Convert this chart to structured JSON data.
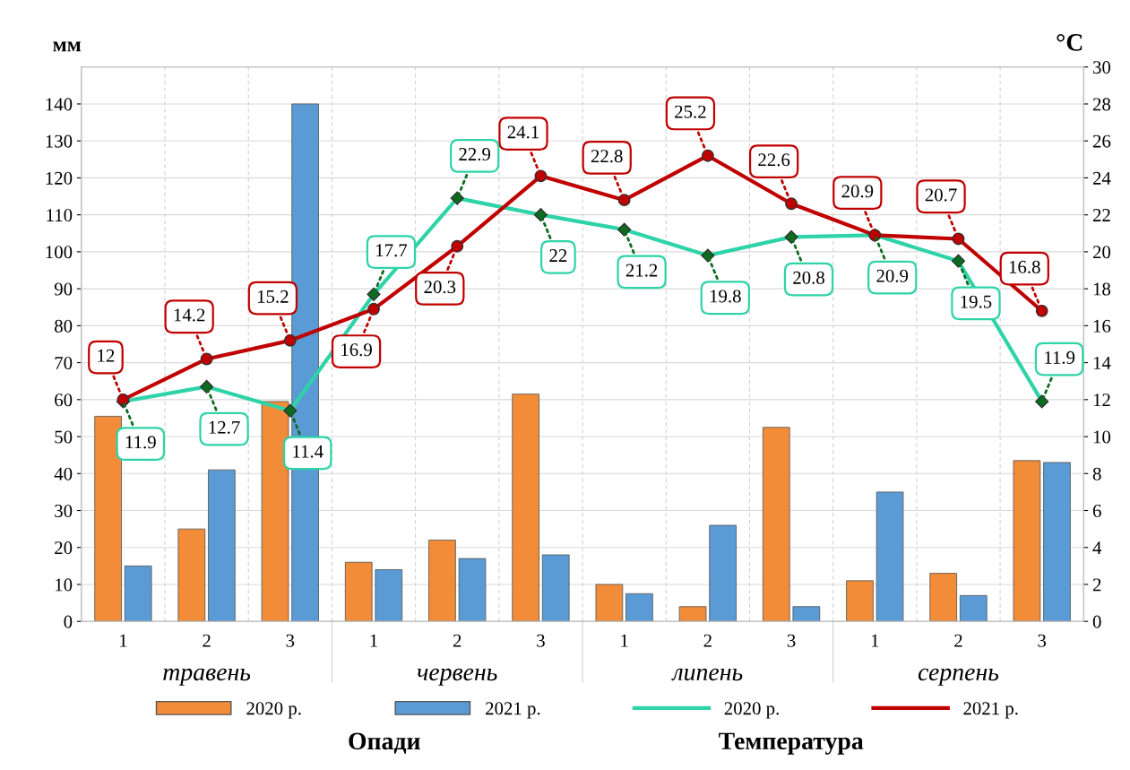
{
  "chart_data": {
    "type": "bar",
    "categories": [
      "1",
      "2",
      "3",
      "1",
      "2",
      "3",
      "1",
      "2",
      "3",
      "1",
      "2",
      "3"
    ],
    "ylabel": "мм",
    "y2label": "°C",
    "ylim": [
      0,
      150
    ],
    "yticks": [
      0,
      10,
      20,
      30,
      40,
      50,
      60,
      70,
      80,
      90,
      100,
      110,
      120,
      130,
      140
    ],
    "y2lim": [
      0,
      30
    ],
    "y2ticks": [
      0,
      2,
      4,
      6,
      8,
      10,
      12,
      14,
      16,
      18,
      20,
      22,
      24,
      26,
      28,
      30
    ],
    "grid": "y",
    "legend": "bottom",
    "series": [
      {
        "name": "2020 р.",
        "color": "#f28c38",
        "values": [
          55.5,
          25,
          59.5,
          16,
          22,
          61.5,
          10,
          4,
          52.5,
          11,
          13,
          43.5
        ]
      },
      {
        "name": "2021 р.",
        "color": "#5b9bd5",
        "values": [
          15,
          41,
          140,
          14,
          17,
          18,
          7.5,
          26,
          4,
          35,
          7,
          43
        ]
      },
      {
        "name": "2020 р.",
        "type": "line",
        "axis": "y2",
        "color": "#2ed3a8",
        "marker": "diamond",
        "line_style": "solid",
        "values": [
          11.9,
          12.7,
          11.4,
          17.7,
          22.9,
          22,
          21.2,
          19.8,
          20.8,
          20.9,
          19.5,
          11.9
        ],
        "value_labels": [
          "11.9",
          "12.7",
          "11.4",
          "17.7",
          "22.9",
          "22",
          "21.2",
          "19.8",
          "20.8",
          "20.9",
          "19.5",
          "11.9"
        ]
      },
      {
        "name": "2021 р.",
        "type": "line",
        "axis": "y2",
        "color": "#c00000",
        "marker": "circle",
        "line_style": "solid",
        "values": [
          12,
          14.2,
          15.2,
          16.9,
          20.3,
          24.1,
          22.8,
          25.2,
          22.6,
          20.9,
          20.7,
          16.8
        ],
        "value_labels": [
          "12",
          "14.2",
          "15.2",
          "16.9",
          "20.3",
          "24.1",
          "22.8",
          "25.2",
          "22.6",
          "20.9",
          "20.7",
          "16.8"
        ]
      }
    ],
    "annotations": [
      "травень",
      "червень",
      "липень",
      "серпень",
      "Опади",
      "Температура"
    ]
  }
}
